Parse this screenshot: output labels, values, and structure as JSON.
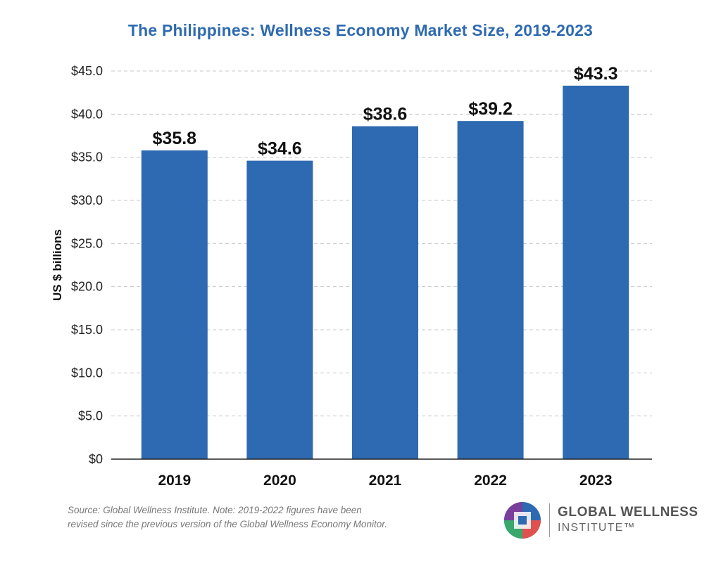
{
  "chart_data": {
    "type": "bar",
    "title": "The Philippines: Wellness Economy Market Size, 2019-2023",
    "ylabel": "US $ billions",
    "xlabel": "",
    "categories": [
      "2019",
      "2020",
      "2021",
      "2022",
      "2023"
    ],
    "values": [
      35.8,
      34.6,
      38.6,
      39.2,
      43.3
    ],
    "data_labels": [
      "$35.8",
      "$34.6",
      "$38.6",
      "$39.2",
      "$43.3"
    ],
    "yticks": [
      0,
      5,
      10,
      15,
      20,
      25,
      30,
      35,
      40,
      45
    ],
    "ytick_labels": [
      "$0",
      "$5.0",
      "$10.0",
      "$15.0",
      "$20.0",
      "$25.0",
      "$30.0",
      "$35.0",
      "$40.0",
      "$45.0"
    ],
    "ylim": [
      0,
      45
    ],
    "grid": true,
    "bar_color": "#2e6ab1"
  },
  "footer": {
    "note_line1": "Source: Global Wellness Institute. Note: 2019-2022 figures have been",
    "note_line2": "revised since the previous version of the Global Wellness Economy Monitor."
  },
  "logo": {
    "line1": "GLOBAL WELLNESS",
    "line2": "INSTITUTE™"
  }
}
